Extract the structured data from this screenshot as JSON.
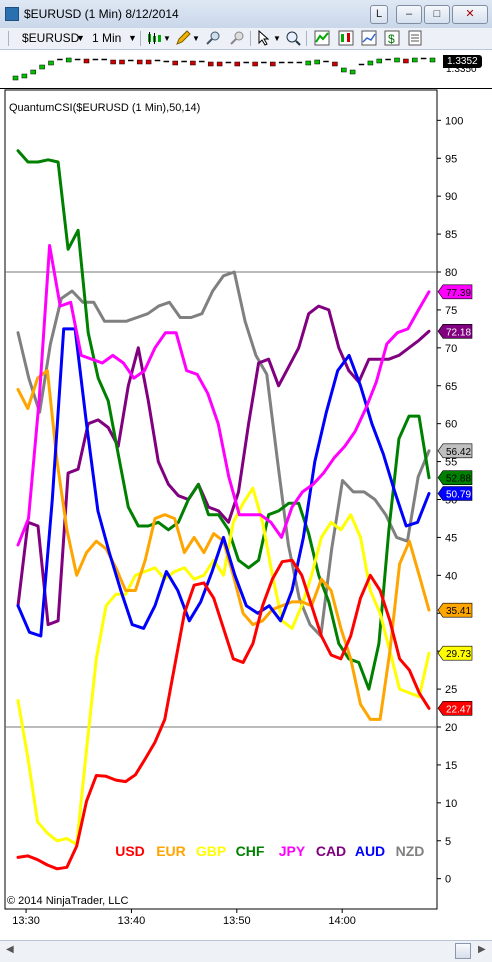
{
  "window": {
    "title": "$EURUSD (1 Min)  8/12/2014",
    "buttons": [
      "L",
      "–",
      "□",
      "✕"
    ]
  },
  "toolbar": {
    "instrument": "$EURUSD",
    "interval": "1 Min"
  },
  "price_panel": {
    "last_price": "1.3352",
    "partial_label": "1.3350"
  },
  "copyright": "© 2014 NinjaTrader, LLC",
  "colors": {
    "USD": "#ff0000",
    "EUR": "#ffa500",
    "GBP": "#ffff00",
    "CHF": "#008000",
    "JPY": "#ff00ff",
    "CAD": "#800080",
    "AUD": "#0000ff",
    "NZD": "#808080"
  },
  "chart_data": {
    "type": "line",
    "title": "QuantumCSI($EURUSD (1 Min),50,14)",
    "x_tick_labels": [
      "13:30",
      "13:40",
      "13:50",
      "14:00"
    ],
    "x_ticks_minutes": [
      810,
      820,
      830,
      840
    ],
    "x_range_minutes": [
      808,
      849
    ],
    "y_ticks": [
      0,
      5,
      10,
      15,
      20,
      25,
      30,
      35,
      40,
      45,
      50,
      55,
      60,
      65,
      70,
      75,
      80,
      85,
      90,
      95,
      100
    ],
    "ylim": [
      -4,
      104
    ],
    "reference_lines": [
      80,
      20
    ],
    "legend_placement": "bottom-center",
    "series": [
      {
        "name": "USD",
        "color": "#ff0000",
        "last_value": "22.47",
        "label_text": "#ffffff",
        "label_bg": "#ff0000",
        "values": [
          2.8,
          3.0,
          2.5,
          1.8,
          1.3,
          1.5,
          4.3,
          10.2,
          13.6,
          13.5,
          13.0,
          12.8,
          13.7,
          15.8,
          18.0,
          21.0,
          28.0,
          35.0,
          38.7,
          39.0,
          37.0,
          33.0,
          29.0,
          28.5,
          31.0,
          36.0,
          39.5,
          41.8,
          42.0,
          40.0,
          36.0,
          32.0,
          29.5,
          29.0,
          32.0,
          37.0,
          40.0,
          38.0,
          34.0,
          29.0,
          27.5,
          24.5,
          22.47
        ]
      },
      {
        "name": "EUR",
        "color": "#ffa500",
        "last_value": "35.41",
        "label_text": "#000000",
        "label_bg": "#ffa500",
        "values": [
          64.5,
          62.0,
          66.0,
          67.0,
          55.0,
          46.0,
          40.0,
          43.0,
          44.5,
          43.5,
          41.0,
          38.0,
          38.0,
          42.0,
          47.5,
          48.0,
          47.5,
          43.0,
          45.0,
          43.0,
          45.5,
          44.5,
          40.0,
          35.0,
          33.5,
          34.0,
          35.5,
          36.0,
          36.5,
          36.5,
          36.0,
          39.5,
          38.0,
          33.0,
          29.0,
          23.0,
          21.0,
          21.0,
          30.0,
          41.5,
          44.5,
          40.0,
          35.41
        ]
      },
      {
        "name": "GBP",
        "color": "#ffff00",
        "last_value": "29.73",
        "label_text": "#000000",
        "label_bg": "#ffff00",
        "values": [
          23.5,
          16.0,
          7.5,
          6.0,
          5.0,
          5.3,
          4.5,
          17.0,
          29.0,
          36.0,
          37.5,
          37.5,
          40.0,
          40.5,
          41.0,
          39.5,
          40.5,
          41.0,
          39.5,
          40.0,
          42.0,
          40.0,
          47.0,
          49.5,
          51.5,
          47.0,
          40.0,
          34.0,
          33.0,
          36.0,
          40.0,
          45.0,
          47.0,
          46.0,
          48.0,
          45.0,
          38.0,
          35.0,
          30.0,
          25.0,
          24.5,
          24.0,
          29.73
        ]
      },
      {
        "name": "CHF",
        "color": "#008000",
        "last_value": "52.88",
        "label_text": "#000000",
        "label_bg": "#008000",
        "values": [
          96.0,
          94.5,
          94.5,
          94.8,
          94.5,
          83.0,
          85.5,
          72.0,
          66.0,
          63.0,
          56.0,
          49.0,
          46.5,
          46.5,
          47.0,
          46.0,
          47.0,
          50.0,
          52.0,
          48.0,
          48.0,
          46.0,
          42.0,
          41.0,
          42.0,
          48.0,
          48.5,
          49.5,
          49.5,
          45.5,
          40.0,
          36.5,
          31.0,
          29.0,
          28.5,
          25.0,
          31.0,
          46.0,
          58.0,
          61.0,
          61.0,
          52.88
        ]
      },
      {
        "name": "JPY",
        "color": "#ff00ff",
        "last_value": "77.39",
        "label_text": "#000000",
        "label_bg": "#ff00ff",
        "values": [
          44.0,
          47.5,
          63.0,
          83.5,
          75.5,
          76.0,
          69.0,
          68.5,
          68.0,
          69.0,
          68.0,
          66.0,
          67.0,
          70.0,
          72.0,
          72.0,
          67.0,
          66.5,
          64.0,
          60.0,
          53.0,
          48.0,
          48.0,
          48.0,
          47.0,
          45.0,
          49.0,
          51.0,
          52.0,
          53.5,
          55.5,
          57.0,
          59.0,
          62.0,
          65.5,
          70.5,
          72.0,
          72.5,
          75.0,
          77.39
        ]
      },
      {
        "name": "CAD",
        "color": "#800080",
        "last_value": "72.18",
        "label_text": "#ffffff",
        "label_bg": "#800080",
        "values": [
          36.0,
          47.0,
          46.5,
          33.5,
          34.0,
          53.5,
          54.0,
          60.0,
          60.5,
          59.5,
          57.0,
          65.0,
          70.0,
          63.0,
          55.0,
          52.0,
          50.5,
          50.0,
          52.0,
          49.0,
          48.5,
          47.0,
          51.0,
          60.0,
          68.0,
          68.5,
          65.0,
          67.5,
          70.0,
          74.5,
          75.5,
          75.0,
          70.0,
          67.0,
          65.5,
          68.5,
          68.5,
          68.5,
          69.0,
          70.0,
          71.0,
          72.18
        ]
      },
      {
        "name": "AUD",
        "color": "#0000ff",
        "last_value": "50.79",
        "label_text": "#ffffff",
        "label_bg": "#0000ff",
        "values": [
          36.0,
          32.5,
          32.0,
          50.0,
          72.5,
          72.5,
          60.0,
          48.5,
          43.0,
          38.0,
          33.5,
          33.0,
          36.0,
          40.5,
          38.0,
          34.0,
          36.5,
          40.5,
          45.0,
          40.0,
          36.0,
          35.0,
          36.0,
          34.0,
          38.0,
          45.0,
          55.0,
          61.5,
          67.0,
          69.0,
          65.0,
          60.0,
          56.0,
          51.0,
          46.5,
          47.0,
          50.79
        ]
      },
      {
        "name": "NZD",
        "color": "#808080",
        "last_value": "56.42",
        "label_text": "#000000",
        "label_bg": "#c0c0c0",
        "values": [
          72.0,
          66.0,
          61.5,
          70.5,
          76.5,
          77.5,
          76.0,
          76.0,
          73.5,
          73.5,
          73.5,
          74.0,
          74.5,
          75.5,
          76.0,
          74.0,
          74.0,
          74.5,
          77.5,
          79.5,
          80.0,
          73.5,
          69.0,
          66.5,
          55.0,
          44.0,
          37.0,
          33.5,
          32.0,
          43.5,
          52.5,
          51.0,
          51.0,
          50.0,
          48.0,
          45.0,
          44.5,
          53.0,
          56.42
        ]
      }
    ]
  }
}
